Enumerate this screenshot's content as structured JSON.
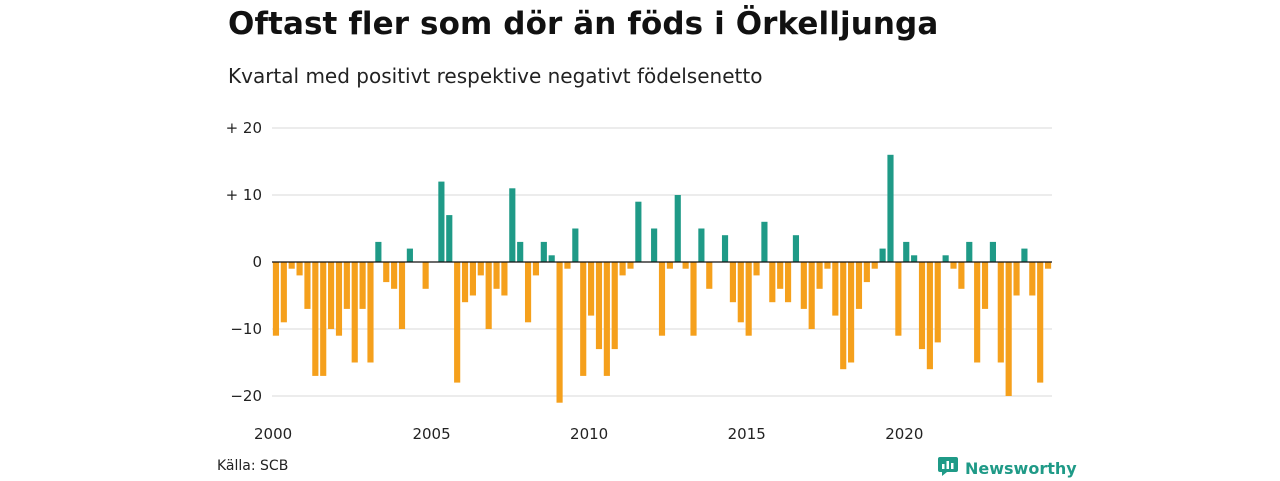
{
  "title": "Oftast fler som dör än föds i Örkelljunga",
  "subtitle": "Kvartal med positivt respektive negativt födelsenetto",
  "source": "Källa: SCB",
  "brand": {
    "name": "Newsworthy",
    "icon": "newsworthy-logo-icon",
    "color": "#1f9a87"
  },
  "chart_data": {
    "type": "bar",
    "frequency": "quarterly",
    "start": "2000 Q1",
    "ylim": [
      -21,
      20
    ],
    "grid": true,
    "colors": {
      "positive": "#1f9a87",
      "negative": "#f5a01c"
    },
    "yticks": [
      {
        "value": 20,
        "label": "+ 20"
      },
      {
        "value": 10,
        "label": "+ 10"
      },
      {
        "value": 0,
        "label": "0"
      },
      {
        "value": -10,
        "label": "−10"
      },
      {
        "value": -20,
        "label": "−20"
      }
    ],
    "xticks": [
      {
        "value": 2000,
        "label": "2000"
      },
      {
        "value": 2005,
        "label": "2005"
      },
      {
        "value": 2010,
        "label": "2010"
      },
      {
        "value": 2015,
        "label": "2015"
      },
      {
        "value": 2020,
        "label": "2020"
      }
    ],
    "values": [
      -11,
      -9,
      -1,
      -2,
      -7,
      -17,
      -17,
      -10,
      -11,
      -7,
      -15,
      -7,
      -15,
      3,
      -3,
      -4,
      -10,
      2,
      0,
      -4,
      0,
      12,
      7,
      -18,
      -6,
      -5,
      -2,
      -10,
      -4,
      -5,
      11,
      3,
      -9,
      -2,
      3,
      1,
      -21,
      -1,
      5,
      -17,
      -8,
      -13,
      -17,
      -13,
      -2,
      -1,
      9,
      0,
      5,
      -11,
      -1,
      10,
      -1,
      -11,
      5,
      -4,
      0,
      4,
      -6,
      -9,
      -11,
      -2,
      6,
      -6,
      -4,
      -6,
      4,
      -7,
      -10,
      -4,
      -1,
      -8,
      -16,
      -15,
      -7,
      -3,
      -1,
      2,
      16,
      -11,
      3,
      1,
      -13,
      -16,
      -12,
      1,
      -1,
      -4,
      3,
      -15,
      -7,
      3,
      -15,
      -20,
      -5,
      2,
      -5,
      -18,
      -1
    ]
  }
}
